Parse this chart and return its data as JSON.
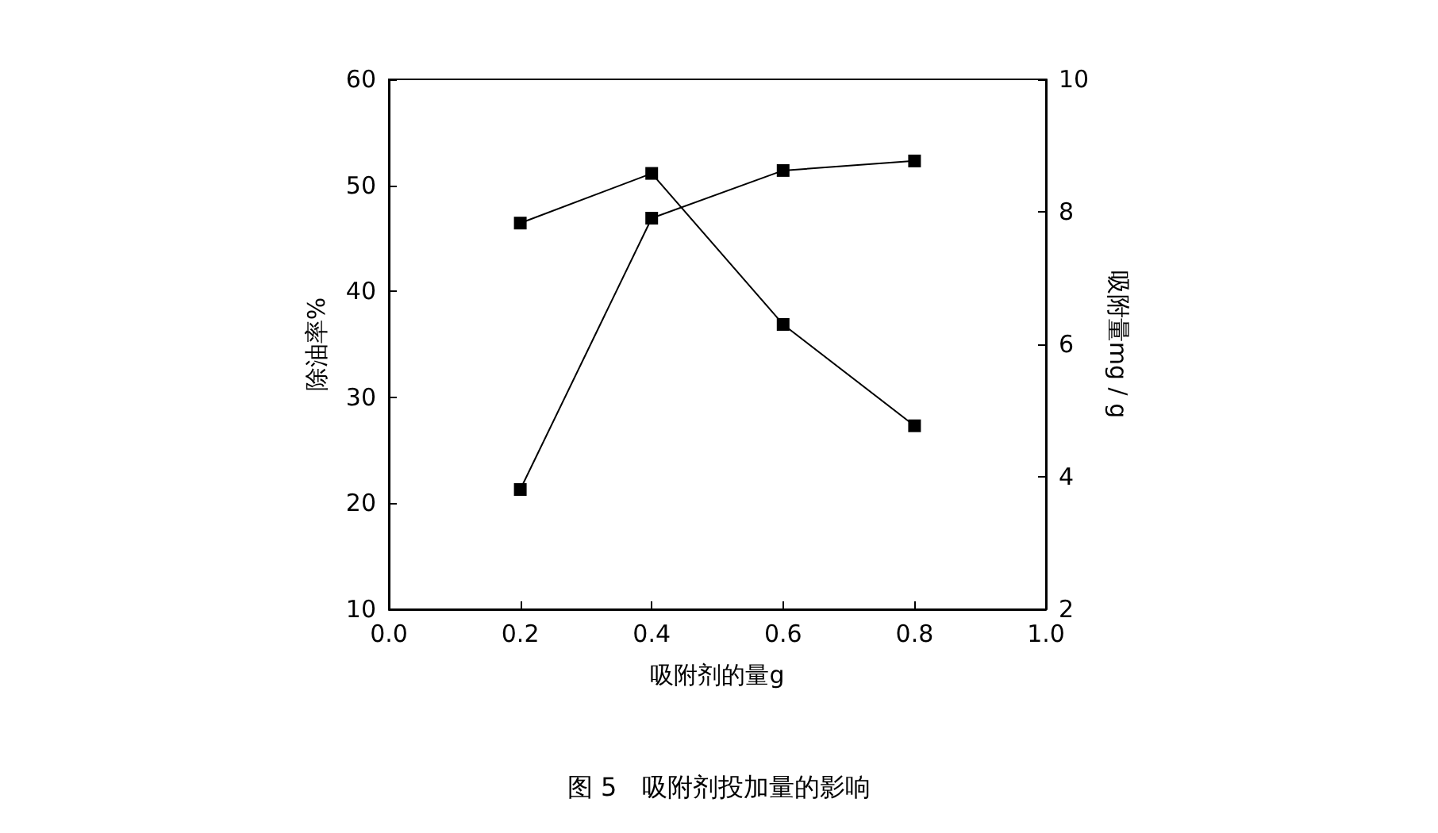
{
  "chart_data": {
    "type": "line",
    "title": "图 5　吸附剂投加量的影响",
    "xlabel": "吸附剂的量g",
    "ylabel": "除油率%",
    "y2label": "吸附量mg / g",
    "x": [
      0.2,
      0.4,
      0.6,
      0.8
    ],
    "series": [
      {
        "color": "#000000",
        "values": [
          21.3,
          46.9,
          51.4,
          52.3
        ]
      },
      {
        "color": "#000000",
        "axis": "y2",
        "values": [
          7.83,
          8.58,
          6.3,
          4.77
        ]
      }
    ],
    "xlim": [
      0,
      1
    ],
    "xticks": [
      {
        "value": 0,
        "label": "0.0"
      },
      {
        "value": 0.2,
        "label": "0.2"
      },
      {
        "value": 0.4,
        "label": "0.4"
      },
      {
        "value": 0.6,
        "label": "0.6"
      },
      {
        "value": 0.8,
        "label": "0.8"
      },
      {
        "value": 1,
        "label": "1.0"
      }
    ],
    "ylim": [
      10,
      60
    ],
    "yticks": [
      10,
      20,
      30,
      40,
      50,
      60
    ],
    "y2lim": [
      2,
      10
    ],
    "y2ticks": [
      2,
      4,
      6,
      8,
      10
    ],
    "grid": false,
    "marker": "square",
    "line_style": "solid"
  }
}
